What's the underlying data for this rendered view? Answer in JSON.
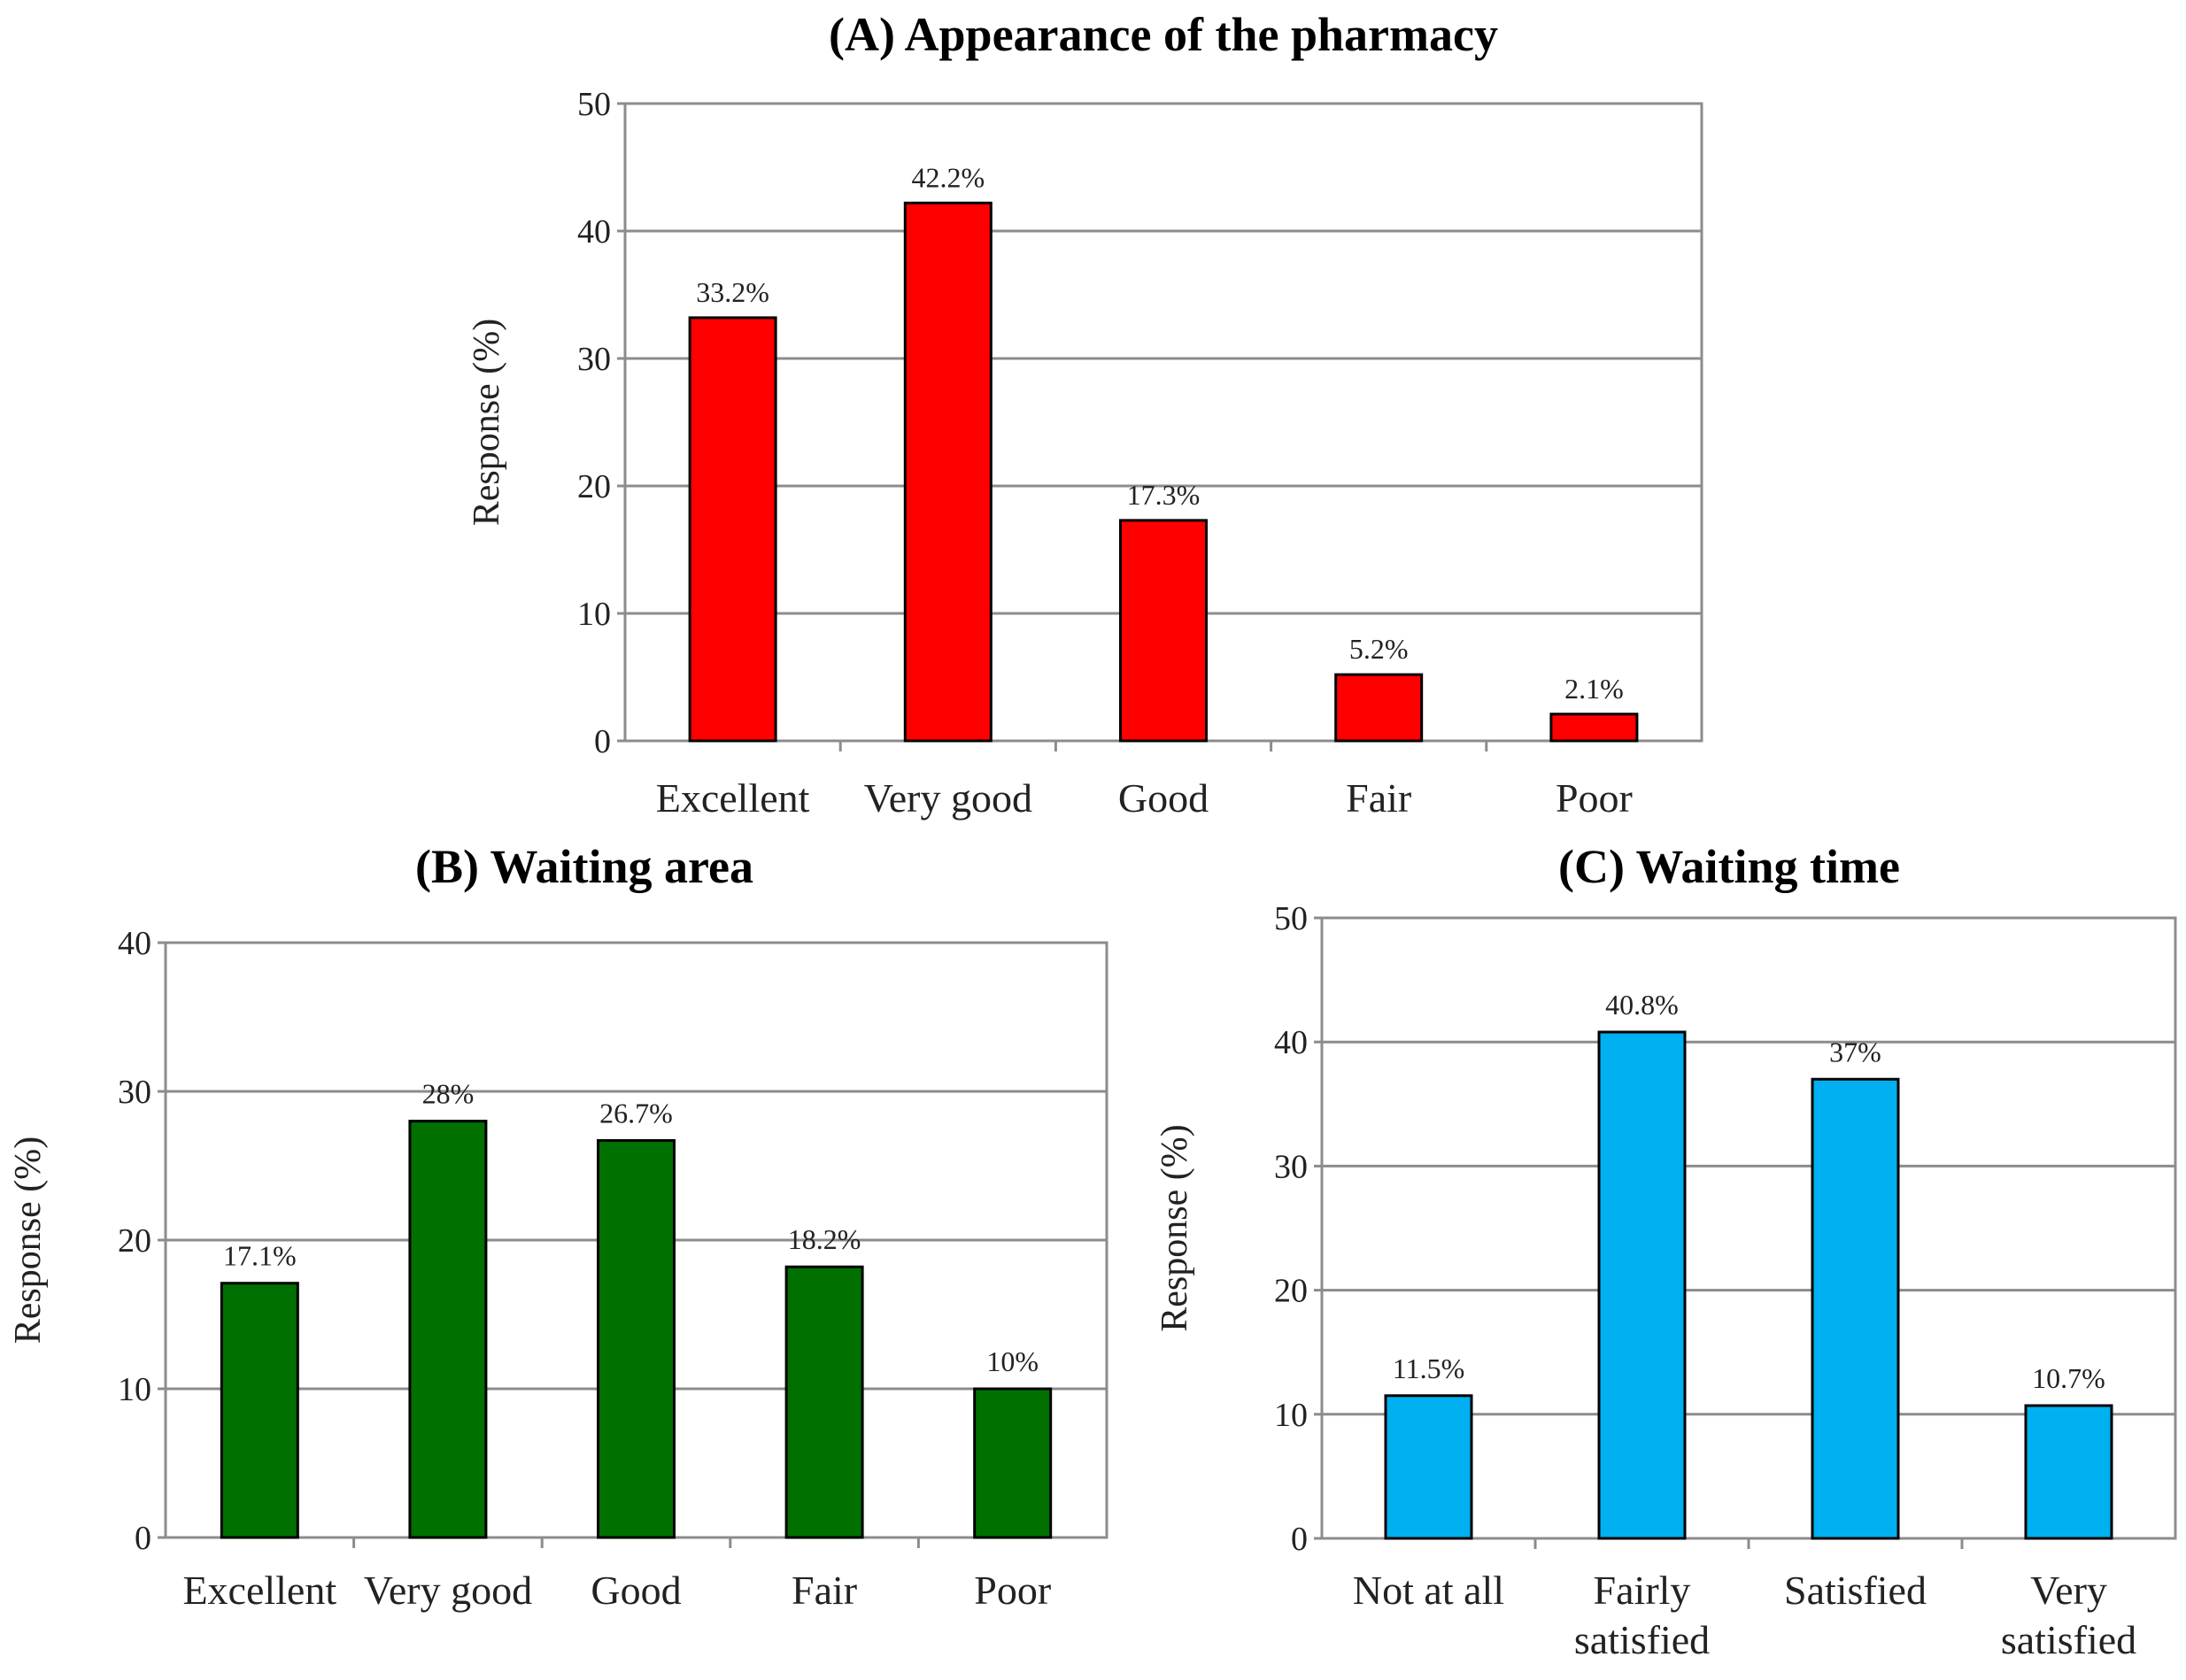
{
  "chart_data": [
    {
      "id": "A",
      "type": "bar",
      "title": "(A) Appearance of the pharmacy",
      "ylabel": "Response (%)",
      "ylim": [
        0,
        50
      ],
      "yticks": [
        0,
        10,
        20,
        30,
        40,
        50
      ],
      "categories": [
        "Excellent",
        "Very good",
        "Good",
        "Fair",
        "Poor"
      ],
      "values": [
        33.2,
        42.2,
        17.3,
        5.2,
        2.1
      ],
      "data_labels": [
        "33.2%",
        "42.2%",
        "17.3%",
        "5.2%",
        "2.1%"
      ],
      "color": "#ff0000",
      "grid": true
    },
    {
      "id": "B",
      "type": "bar",
      "title": "(B) Waiting area",
      "ylabel": "Response (%)",
      "ylim": [
        0,
        40
      ],
      "yticks": [
        0,
        10,
        20,
        30,
        40
      ],
      "categories": [
        "Excellent",
        "Very good",
        "Good",
        "Fair",
        "Poor"
      ],
      "values": [
        17.1,
        28,
        26.7,
        18.2,
        10
      ],
      "data_labels": [
        "17.1%",
        "28%",
        "26.7%",
        "18.2%",
        "10%"
      ],
      "color": "#007000",
      "grid": true
    },
    {
      "id": "C",
      "type": "bar",
      "title": "(C) Waiting time",
      "ylabel": "Response (%)",
      "ylim": [
        0,
        50
      ],
      "yticks": [
        0,
        10,
        20,
        30,
        40,
        50
      ],
      "categories": [
        [
          "Not at all"
        ],
        [
          "Fairly",
          "satisfied"
        ],
        [
          "Satisfied"
        ],
        [
          "Very",
          "satisfied"
        ]
      ],
      "values": [
        11.5,
        40.8,
        37,
        10.7
      ],
      "data_labels": [
        "11.5%",
        "40.8%",
        "37%",
        "10.7%"
      ],
      "color": "#00b0f0",
      "grid": true
    }
  ]
}
